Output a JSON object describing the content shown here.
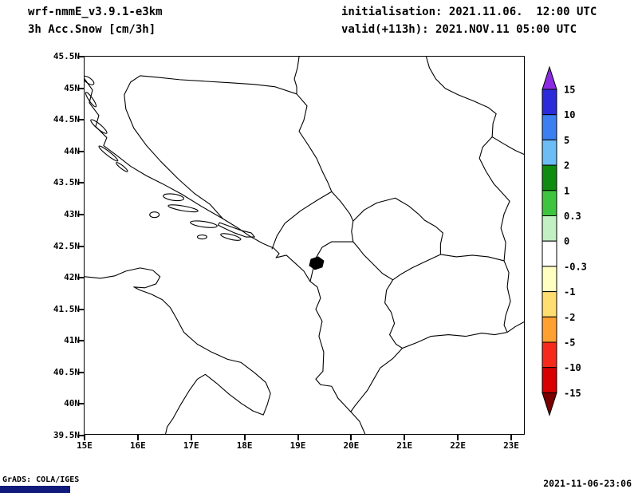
{
  "header": {
    "model": "wrf-nmmE_v3.9.1-e3km",
    "field": "3h Acc.Snow [cm/3h]",
    "init": "initialisation: 2021.11.06.  12:00 UTC",
    "valid": "valid(+113h): 2021.NOV.11 05:00 UTC"
  },
  "map": {
    "y_ticks": [
      "45.5N",
      "45N",
      "44.5N",
      "44N",
      "43.5N",
      "43N",
      "42.5N",
      "42N",
      "41.5N",
      "41N",
      "40.5N",
      "40N",
      "39.5N"
    ],
    "x_ticks": [
      "15E",
      "16E",
      "17E",
      "18E",
      "19E",
      "20E",
      "21E",
      "22E",
      "23E"
    ]
  },
  "colorbar": {
    "labels": [
      "15",
      "10",
      "5",
      "2",
      "1",
      "0.3",
      "0",
      "-0.3",
      "-1",
      "-2",
      "-5",
      "-10",
      "-15"
    ],
    "colors": {
      "top_arrow": "#8a2be2",
      "segments": [
        "#2b2bd9",
        "#3b7ff0",
        "#6cbdf5",
        "#0f8c0f",
        "#3fc43f",
        "#c2f0c2",
        "#ffffff",
        "#ffffc2",
        "#ffdd70",
        "#ffa030",
        "#f52a1a",
        "#d90000"
      ],
      "bottom_arrow": "#7a0000"
    }
  },
  "footer": {
    "credit": "GrADS: COLA/IGES",
    "timestamp": "2021-11-06-23:06",
    "bar_color": "#101a7a"
  },
  "chart_data": {
    "type": "heatmap",
    "title": "3h Acc.Snow [cm/3h]",
    "x_axis": {
      "tick_labels": [
        "15E",
        "16E",
        "17E",
        "18E",
        "19E",
        "20E",
        "21E",
        "22E",
        "23E"
      ],
      "range_deg_east": [
        15,
        23.3
      ]
    },
    "y_axis": {
      "tick_labels": [
        "45.5N",
        "45N",
        "44.5N",
        "44N",
        "43.5N",
        "43N",
        "42.5N",
        "42N",
        "41.5N",
        "41N",
        "40.5N",
        "40N",
        "39.5N"
      ],
      "range_deg_north": [
        39.5,
        45.5
      ]
    },
    "colorbar_levels": [
      15,
      10,
      5,
      2,
      1,
      0.3,
      0,
      -0.3,
      -1,
      -2,
      -5,
      -10,
      -15
    ],
    "field_note": "No colored shading visible inside the map domain; accumulated snow is approximately 0 everywhere (only coastlines and country borders drawn)"
  }
}
